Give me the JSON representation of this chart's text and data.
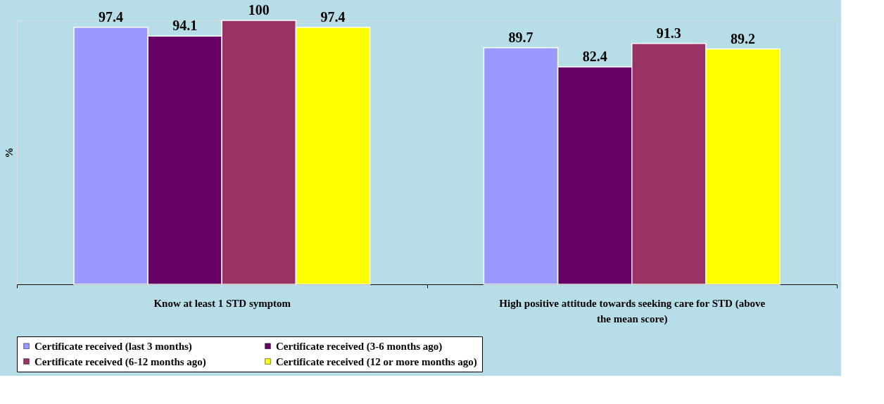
{
  "chart_data": {
    "type": "bar",
    "ylabel": "%",
    "categories": [
      "Know at least 1 STD symptom",
      "High positive attitude towards seeking care for STD (above the mean score)"
    ],
    "series": [
      {
        "name": "Certificate received (last 3 months)",
        "color": "#9999ff",
        "values": [
          97.4,
          89.7
        ]
      },
      {
        "name": "Certificate received (3-6 months ago)",
        "color": "#660066",
        "values": [
          94.1,
          82.4
        ]
      },
      {
        "name": "Certificate received (6-12 months ago)",
        "color": "#993366",
        "values": [
          100,
          91.3
        ]
      },
      {
        "name": "Certificate received (12 or more months ago)",
        "color": "#ffff00",
        "values": [
          97.4,
          89.2
        ]
      }
    ],
    "data_labels": true,
    "legend": "bottom",
    "grid": false
  }
}
